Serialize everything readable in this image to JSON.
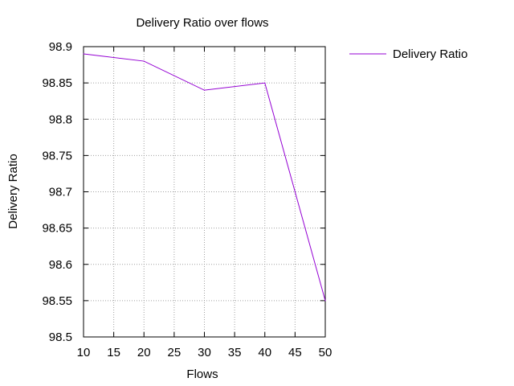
{
  "chart_data": {
    "type": "line",
    "title": "Delivery Ratio over flows",
    "xlabel": "Flows",
    "ylabel": "Delivery Ratio",
    "xlim": [
      10,
      50
    ],
    "ylim": [
      98.5,
      98.9
    ],
    "x_ticks": [
      "10",
      "15",
      "20",
      "25",
      "30",
      "35",
      "40",
      "45",
      "50"
    ],
    "y_ticks": [
      "98.5",
      "98.55",
      "98.6",
      "98.65",
      "98.7",
      "98.75",
      "98.8",
      "98.85",
      "98.9"
    ],
    "grid": true,
    "legend_position": "outside-top-right",
    "series": [
      {
        "name": "Delivery Ratio",
        "color": "#9400d3",
        "x": [
          10,
          20,
          30,
          40,
          50
        ],
        "y": [
          98.89,
          98.88,
          98.84,
          98.85,
          98.55
        ]
      }
    ]
  }
}
